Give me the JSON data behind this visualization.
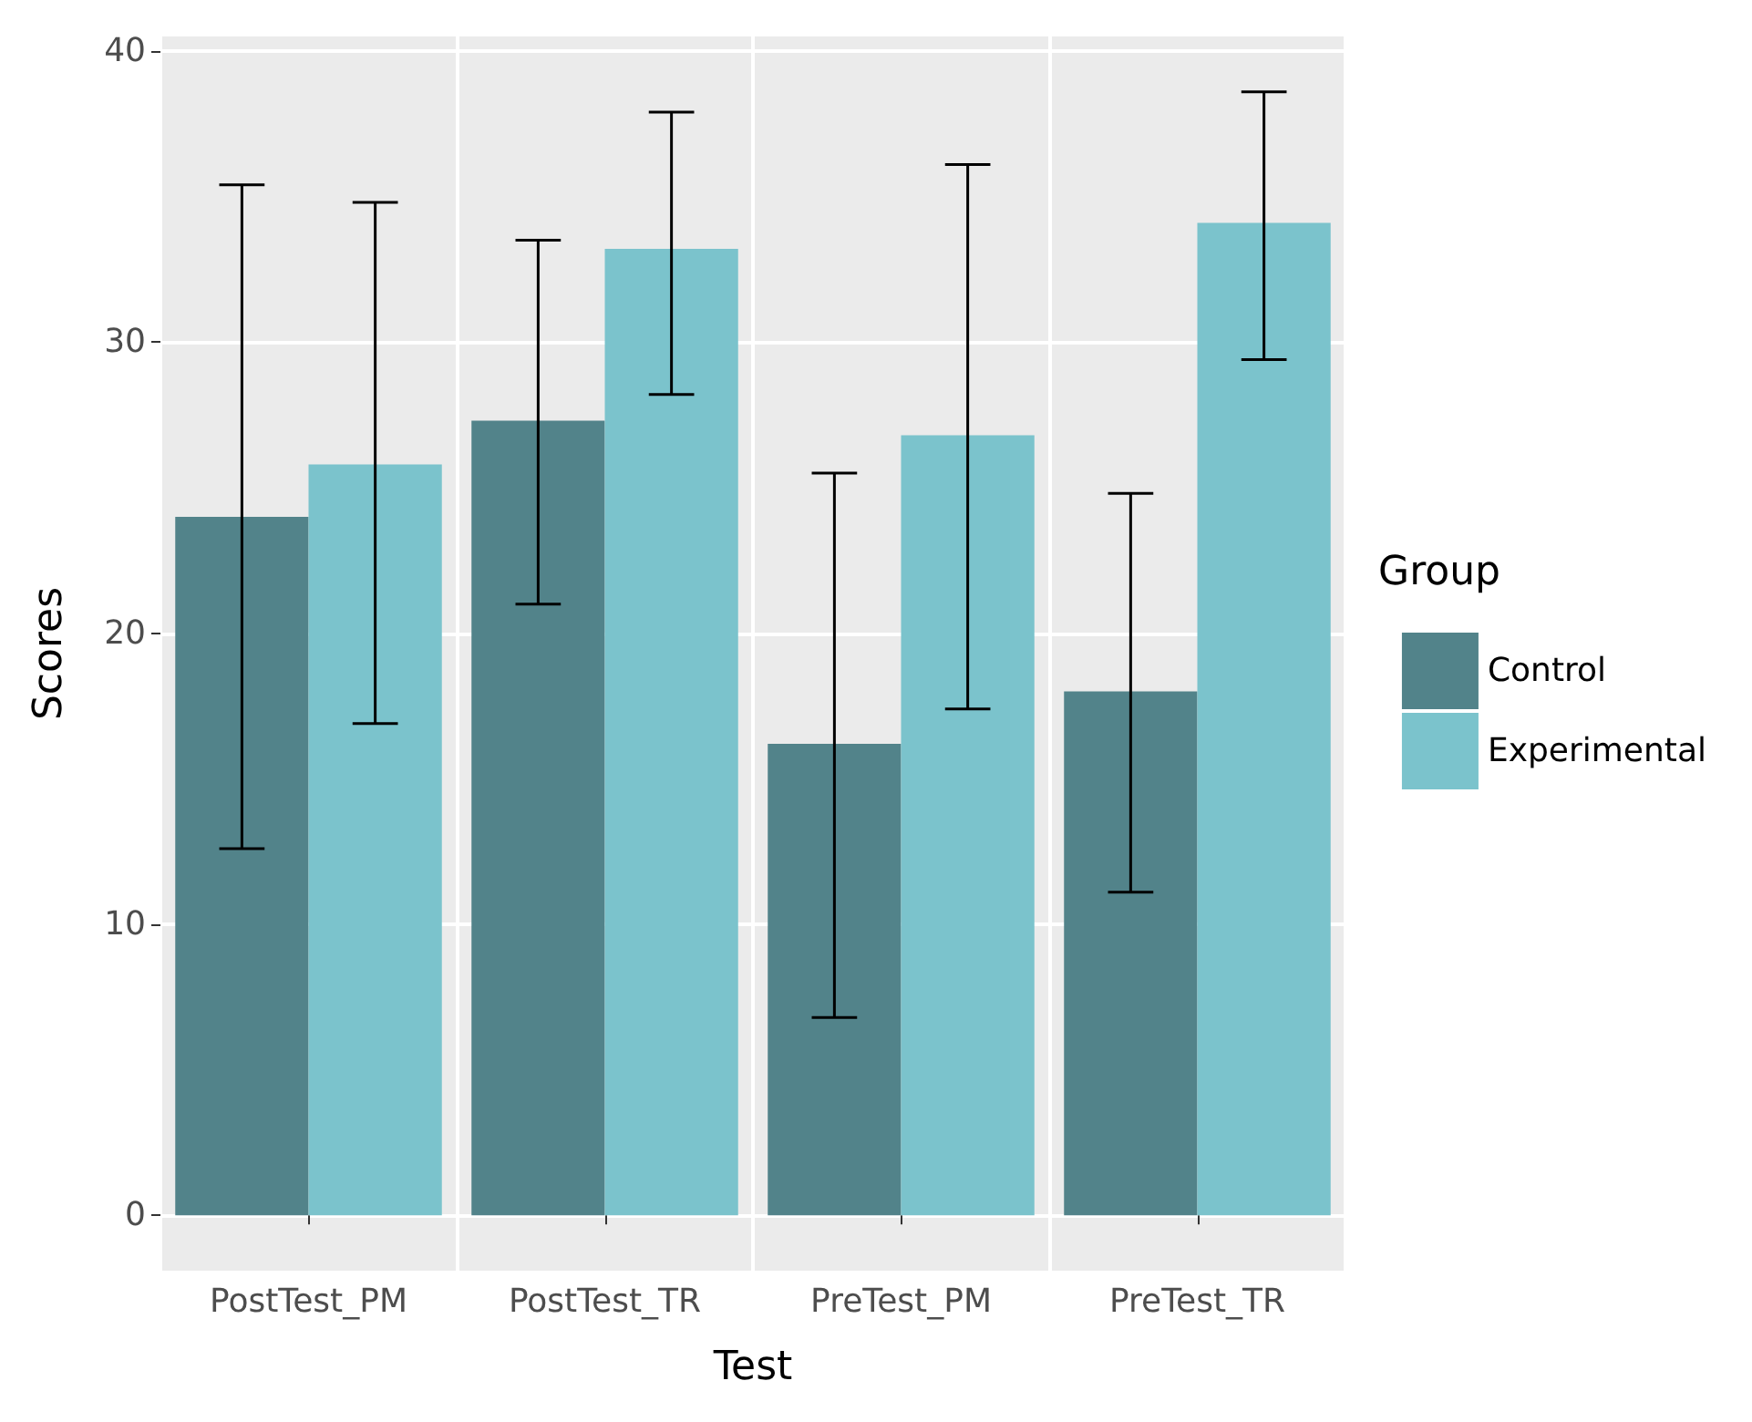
{
  "chart_data": {
    "type": "bar",
    "xlabel": "Test",
    "ylabel": "Scores",
    "legend_title": "Group",
    "categories": [
      "PostTest_PM",
      "PostTest_TR",
      "PreTest_PM",
      "PreTest_TR"
    ],
    "series": [
      {
        "name": "Control",
        "color": "#52838a",
        "values": [
          24.0,
          27.3,
          16.2,
          18.0
        ],
        "errors": [
          [
            12.6,
            35.4
          ],
          [
            21.0,
            33.5
          ],
          [
            6.8,
            25.5
          ],
          [
            11.1,
            24.8
          ]
        ]
      },
      {
        "name": "Experimental",
        "color": "#7bc3cc",
        "values": [
          25.8,
          33.2,
          26.8,
          34.1
        ],
        "errors": [
          [
            16.9,
            34.8
          ],
          [
            28.2,
            37.9
          ],
          [
            17.4,
            36.1
          ],
          [
            29.4,
            38.6
          ]
        ]
      }
    ],
    "ylim": [
      -1.9,
      40.5
    ],
    "yticks": [
      0,
      10,
      20,
      30,
      40
    ],
    "grid": true,
    "legend": "right"
  }
}
